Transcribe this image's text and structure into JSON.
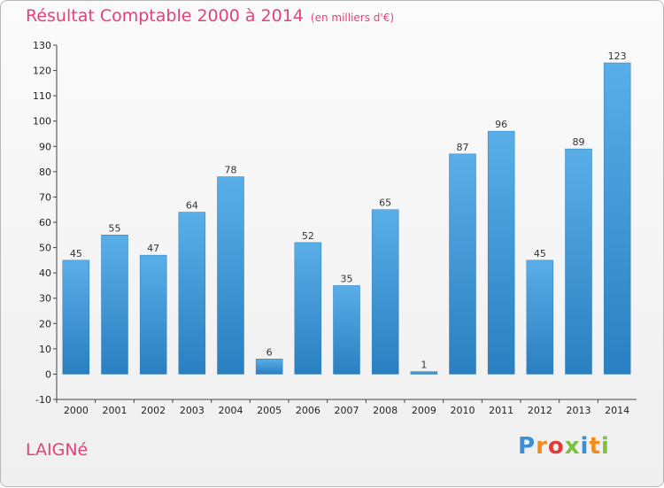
{
  "chart_data": {
    "type": "bar",
    "title": "Résultat Comptable 2000 à 2014",
    "subtitle": "(en milliers d'€)",
    "categories": [
      "2000",
      "2001",
      "2002",
      "2003",
      "2004",
      "2005",
      "2006",
      "2007",
      "2008",
      "2009",
      "2010",
      "2011",
      "2012",
      "2013",
      "2014"
    ],
    "values": [
      45,
      55,
      47,
      64,
      78,
      6,
      52,
      35,
      65,
      1,
      87,
      96,
      45,
      89,
      123
    ],
    "ylim": [
      -10,
      130
    ],
    "yticks": [
      -10,
      0,
      10,
      20,
      30,
      40,
      50,
      60,
      70,
      80,
      90,
      100,
      110,
      120,
      130
    ],
    "grid": false,
    "bar_color": "#3d9ade"
  },
  "footer": {
    "commune": "LAIGNé",
    "brand_letters": [
      "P",
      "r",
      "o",
      "x",
      "i",
      "t",
      "i"
    ]
  }
}
